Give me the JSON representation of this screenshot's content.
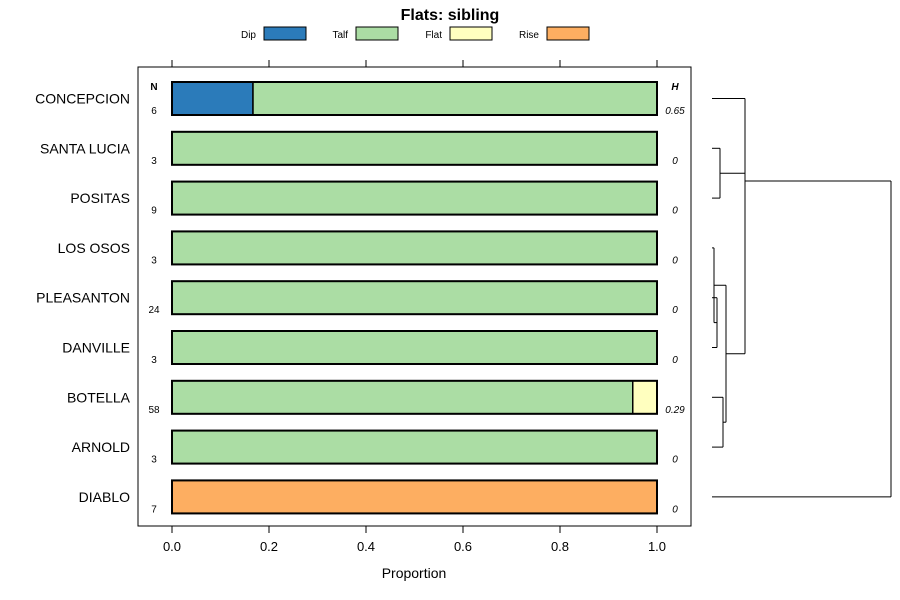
{
  "chart_data": {
    "type": "bar",
    "stacked": true,
    "orientation": "horizontal",
    "title": "Flats: sibling",
    "xlabel": "Proportion",
    "xlim": [
      0,
      1
    ],
    "x_ticks": [
      "0.0",
      "0.2",
      "0.4",
      "0.6",
      "0.8",
      "1.0"
    ],
    "legend_position": "top",
    "legend": [
      {
        "name": "Dip",
        "color": "#2b7bba"
      },
      {
        "name": "Talf",
        "color": "#abdda4"
      },
      {
        "name": "Flat",
        "color": "#ffffbf"
      },
      {
        "name": "Rise",
        "color": "#fdae61"
      }
    ],
    "n_header": "N",
    "h_header": "H",
    "categories": [
      "CONCEPCION",
      "SANTA LUCIA",
      "POSITAS",
      "LOS OSOS",
      "PLEASANTON",
      "DANVILLE",
      "BOTELLA",
      "ARNOLD",
      "DIABLO"
    ],
    "n": [
      "6",
      "3",
      "9",
      "3",
      "24",
      "3",
      "58",
      "3",
      "7"
    ],
    "h": [
      "0.65",
      "0",
      "0",
      "0",
      "0",
      "0",
      "0.29",
      "0",
      "0"
    ],
    "series": [
      {
        "name": "Dip",
        "values": [
          0.167,
          0,
          0,
          0,
          0,
          0,
          0,
          0,
          0
        ]
      },
      {
        "name": "Talf",
        "values": [
          0.833,
          1,
          1,
          1,
          1,
          1,
          0.95,
          1,
          0
        ]
      },
      {
        "name": "Flat",
        "values": [
          0,
          0,
          0,
          0,
          0,
          0,
          0.05,
          0,
          0
        ]
      },
      {
        "name": "Rise",
        "values": [
          0,
          0,
          0,
          0,
          0,
          0,
          0,
          0,
          1
        ]
      }
    ],
    "grid": false,
    "dendrogram": true
  }
}
